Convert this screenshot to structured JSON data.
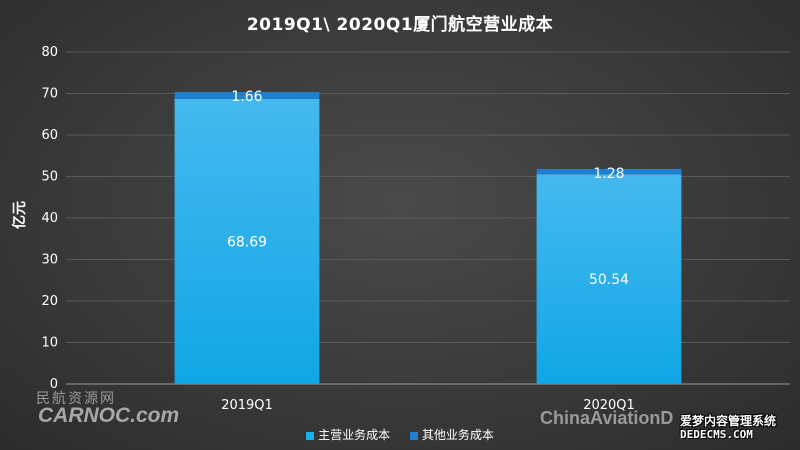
{
  "chart_data": {
    "type": "bar",
    "stacked": true,
    "title": "2019Q1\\ 2020Q1厦门航空营业成本",
    "ylabel": "亿元",
    "xlabel": "",
    "categories": [
      "2019Q1",
      "2020Q1"
    ],
    "ylim": [
      0,
      80
    ],
    "yticks": [
      0,
      10,
      20,
      30,
      40,
      50,
      60,
      70,
      80
    ],
    "grid": true,
    "legend_position": "bottom",
    "series": [
      {
        "name": "主营业务成本",
        "values": [
          68.69,
          50.54
        ],
        "color": "#1ab0ec"
      },
      {
        "name": "其他业务成本",
        "values": [
          1.66,
          1.28
        ],
        "color": "#1f7fd0"
      }
    ]
  },
  "watermarks": {
    "carnoc_cn": "民航资源网",
    "carnoc": "CARNOC.com",
    "chinaaviation": "ChinaAviationD",
    "site_cn": "爱梦内容管理系统",
    "site": "DEDECMS.COM"
  }
}
